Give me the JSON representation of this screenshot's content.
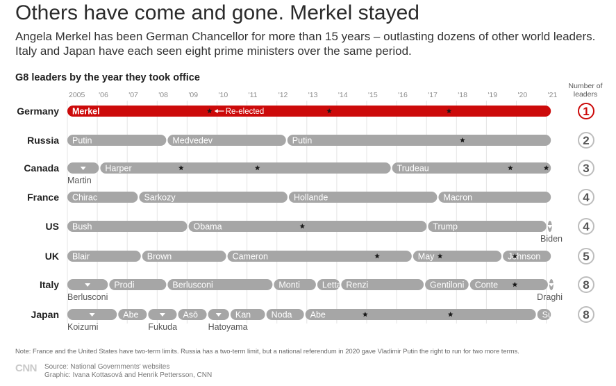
{
  "title": "Others have come and gone. Merkel stayed",
  "subtitle": "Angela Merkel has been German Chancellor for more than 15 years – outlasting dozens of other world leaders. Italy and Japan have each seen eight prime ministers over the same period.",
  "chart_heading": "G8 leaders by the year they took office",
  "number_header": "Number of leaders",
  "note": "Note: France and the United States have two-term limits. Russia has a two-term limit, but a national referendum in 2020 gave Vladimir Putin the right to run for two more terms.",
  "source": "Source: National Governments' websites",
  "graphic": "Graphic: Ivana Kottasová and Henrik Pettersson, CNN",
  "logo": "CNN",
  "colors": {
    "highlight": "#cc0a0a",
    "bar": "#a6a6a6",
    "circle_border": "#bdbdbd",
    "grid": "#e4e4e4"
  },
  "chart_data": {
    "type": "timeline",
    "x_range": [
      2005,
      2021.2
    ],
    "year_ticks": [
      {
        "year": 2005,
        "label": "2005"
      },
      {
        "year": 2006,
        "label": "'06"
      },
      {
        "year": 2007,
        "label": "'07"
      },
      {
        "year": 2008,
        "label": "'08"
      },
      {
        "year": 2009,
        "label": "'09"
      },
      {
        "year": 2010,
        "label": "'10"
      },
      {
        "year": 2011,
        "label": "'11"
      },
      {
        "year": 2012,
        "label": "'12"
      },
      {
        "year": 2013,
        "label": "'13"
      },
      {
        "year": 2014,
        "label": "'14"
      },
      {
        "year": 2015,
        "label": "'15"
      },
      {
        "year": 2016,
        "label": "'16"
      },
      {
        "year": 2017,
        "label": "'17"
      },
      {
        "year": 2018,
        "label": "'18"
      },
      {
        "year": 2019,
        "label": "'19"
      },
      {
        "year": 2020,
        "label": "'20"
      },
      {
        "year": 2021,
        "label": "'21"
      }
    ],
    "annotation": {
      "text": "Re-elected",
      "year": 2009.75,
      "country": "Germany"
    },
    "countries": [
      {
        "name": "Germany",
        "count": "1",
        "highlight": true,
        "leaders": [
          {
            "name": "Merkel",
            "start": 2005.0,
            "end": 2021.2,
            "label_pos": "inside"
          }
        ],
        "stars": [
          2009.75,
          2013.75,
          2017.75
        ]
      },
      {
        "name": "Russia",
        "count": "2",
        "leaders": [
          {
            "name": "Putin",
            "start": 2005.0,
            "end": 2008.35,
            "label_pos": "inside"
          },
          {
            "name": "Medvedev",
            "start": 2008.35,
            "end": 2012.35,
            "label_pos": "inside"
          },
          {
            "name": "Putin",
            "start": 2012.35,
            "end": 2021.2,
            "label_pos": "inside"
          }
        ],
        "stars": [
          2018.2
        ]
      },
      {
        "name": "Canada",
        "count": "3",
        "leaders": [
          {
            "name": "Martin",
            "start": 2005.0,
            "end": 2006.1,
            "label_pos": "below-left"
          },
          {
            "name": "Harper",
            "start": 2006.1,
            "end": 2015.85,
            "label_pos": "inside"
          },
          {
            "name": "Trudeau",
            "start": 2015.85,
            "end": 2021.2,
            "label_pos": "inside"
          }
        ],
        "stars": [
          2008.8,
          2011.35,
          2019.8,
          2021.0
        ]
      },
      {
        "name": "France",
        "count": "4",
        "leaders": [
          {
            "name": "Chirac",
            "start": 2005.0,
            "end": 2007.4,
            "label_pos": "inside"
          },
          {
            "name": "Sarkozy",
            "start": 2007.4,
            "end": 2012.4,
            "label_pos": "inside"
          },
          {
            "name": "Hollande",
            "start": 2012.4,
            "end": 2017.4,
            "label_pos": "inside"
          },
          {
            "name": "Macron",
            "start": 2017.4,
            "end": 2021.2,
            "label_pos": "inside"
          }
        ],
        "stars": []
      },
      {
        "name": "US",
        "count": "4",
        "leaders": [
          {
            "name": "Bush",
            "start": 2005.0,
            "end": 2009.05,
            "label_pos": "inside"
          },
          {
            "name": "Obama",
            "start": 2009.05,
            "end": 2017.05,
            "label_pos": "inside"
          },
          {
            "name": "Trump",
            "start": 2017.05,
            "end": 2021.05,
            "label_pos": "inside"
          },
          {
            "name": "Biden",
            "start": 2021.05,
            "end": 2021.2,
            "label_pos": "below-right"
          }
        ],
        "stars": [
          2012.85
        ]
      },
      {
        "name": "UK",
        "count": "5",
        "leaders": [
          {
            "name": "Blair",
            "start": 2005.0,
            "end": 2007.5,
            "label_pos": "inside"
          },
          {
            "name": "Brown",
            "start": 2007.5,
            "end": 2010.35,
            "label_pos": "inside"
          },
          {
            "name": "Cameron",
            "start": 2010.35,
            "end": 2016.55,
            "label_pos": "inside"
          },
          {
            "name": "May",
            "start": 2016.55,
            "end": 2019.55,
            "label_pos": "inside"
          },
          {
            "name": "Johnson",
            "start": 2019.55,
            "end": 2021.2,
            "label_pos": "inside"
          }
        ],
        "stars": [
          2015.35,
          2017.45,
          2019.95
        ]
      },
      {
        "name": "Italy",
        "count": "8",
        "leaders": [
          {
            "name": "Berlusconi",
            "start": 2005.0,
            "end": 2006.4,
            "label_pos": "below-left"
          },
          {
            "name": "Prodi",
            "start": 2006.4,
            "end": 2008.35,
            "label_pos": "inside"
          },
          {
            "name": "Berlusconi",
            "start": 2008.35,
            "end": 2011.9,
            "label_pos": "inside"
          },
          {
            "name": "Monti",
            "start": 2011.9,
            "end": 2013.35,
            "label_pos": "inside"
          },
          {
            "name": "Letta",
            "start": 2013.35,
            "end": 2014.15,
            "label_pos": "inside"
          },
          {
            "name": "Renzi",
            "start": 2014.15,
            "end": 2016.95,
            "label_pos": "inside"
          },
          {
            "name": "Gentiloni",
            "start": 2016.95,
            "end": 2018.45,
            "label_pos": "inside"
          },
          {
            "name": "Conte",
            "start": 2018.45,
            "end": 2021.1,
            "label_pos": "inside"
          },
          {
            "name": "Draghi",
            "start": 2021.1,
            "end": 2021.2,
            "label_pos": "below-right"
          }
        ],
        "stars": [
          2019.95
        ]
      },
      {
        "name": "Japan",
        "count": "8",
        "leaders": [
          {
            "name": "Koizumi",
            "start": 2005.0,
            "end": 2006.7,
            "label_pos": "below-left"
          },
          {
            "name": "Abe",
            "start": 2006.7,
            "end": 2007.7,
            "label_pos": "inside"
          },
          {
            "name": "Fukuda",
            "start": 2007.7,
            "end": 2008.7,
            "label_pos": "below-left"
          },
          {
            "name": "Asō",
            "start": 2008.7,
            "end": 2009.7,
            "label_pos": "inside"
          },
          {
            "name": "Hatoyama",
            "start": 2009.7,
            "end": 2010.45,
            "label_pos": "below-left"
          },
          {
            "name": "Kan",
            "start": 2010.45,
            "end": 2011.65,
            "label_pos": "inside"
          },
          {
            "name": "Noda",
            "start": 2011.65,
            "end": 2012.95,
            "label_pos": "inside"
          },
          {
            "name": "Abe",
            "start": 2012.95,
            "end": 2020.7,
            "label_pos": "inside"
          },
          {
            "name": "Suga",
            "start": 2020.7,
            "end": 2021.2,
            "label_pos": "inside"
          }
        ],
        "stars": [
          2014.95,
          2017.8
        ]
      }
    ]
  }
}
